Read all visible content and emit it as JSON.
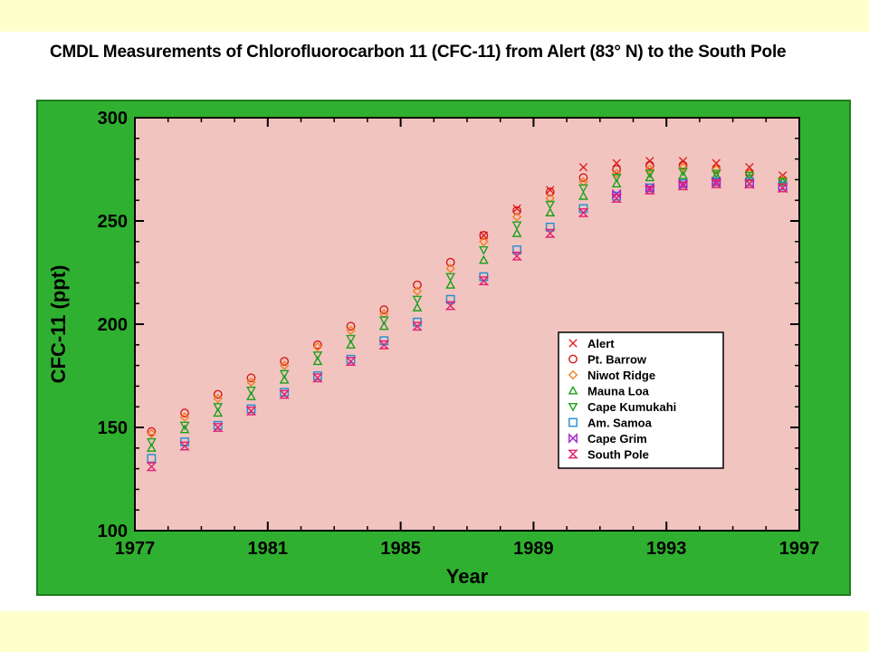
{
  "page": {
    "background": "#ffffcc",
    "band_color": "#ffffff"
  },
  "slide_title": "CMDL Measurements of Chlorofluorocarbon 11 (CFC-11) from Alert (83° N) to the South Pole",
  "colors": {
    "frame_green": "#30b030",
    "plot_background": "#f2c4c0",
    "axis": "#000000"
  },
  "chart_data": {
    "type": "scatter",
    "title": "",
    "xlabel": "Year",
    "ylabel": "CFC-11 (ppt)",
    "xlim": [
      1977,
      1997
    ],
    "ylim": [
      100,
      300
    ],
    "x_ticks": [
      1977,
      1981,
      1985,
      1989,
      1993,
      1997
    ],
    "x_tick_labels": [
      "1977",
      "1981",
      "1985",
      "1989",
      "1993",
      "1997"
    ],
    "y_ticks": [
      100,
      150,
      200,
      250,
      300
    ],
    "y_tick_labels": [
      "100",
      "150",
      "200",
      "250",
      "300"
    ],
    "grid": false,
    "legend": {
      "position": "right-center"
    },
    "x": [
      1977.5,
      1978.5,
      1979.5,
      1980.5,
      1981.5,
      1982.5,
      1983.5,
      1984.5,
      1985.5,
      1986.5,
      1987.5,
      1988.5,
      1989.5,
      1990.5,
      1991.5,
      1992.5,
      1993.5,
      1994.5,
      1995.5,
      1996.5
    ],
    "series": [
      {
        "name": "Alert",
        "marker": "x",
        "color": "#e02020",
        "values": [
          null,
          null,
          null,
          null,
          null,
          null,
          null,
          null,
          null,
          null,
          243,
          256,
          265,
          276,
          278,
          279,
          279,
          278,
          276,
          272
        ]
      },
      {
        "name": "Pt. Barrow",
        "marker": "circle",
        "color": "#d41818",
        "values": [
          148,
          157,
          166,
          174,
          182,
          190,
          199,
          207,
          219,
          230,
          243,
          255,
          264,
          271,
          275,
          277,
          277,
          275,
          273,
          270
        ]
      },
      {
        "name": "Niwot Ridge",
        "marker": "diamond",
        "color": "#f08020",
        "values": [
          147,
          155,
          164,
          172,
          180,
          189,
          197,
          205,
          216,
          227,
          240,
          252,
          261,
          269,
          273,
          275,
          276,
          275,
          273,
          270
        ]
      },
      {
        "name": "Mauna Loa",
        "marker": "triangle-up",
        "color": "#18a018",
        "values": [
          140,
          149,
          157,
          165,
          173,
          182,
          190,
          199,
          208,
          219,
          231,
          244,
          254,
          262,
          268,
          271,
          272,
          272,
          271,
          269
        ]
      },
      {
        "name": "Cape Kumukahi",
        "marker": "triangle-down",
        "color": "#20a020",
        "values": [
          143,
          151,
          160,
          168,
          176,
          185,
          193,
          202,
          212,
          223,
          236,
          248,
          258,
          266,
          271,
          273,
          274,
          273,
          272,
          269
        ]
      },
      {
        "name": "Am. Samoa",
        "marker": "square",
        "color": "#1f8fd0",
        "values": [
          135,
          143,
          151,
          159,
          167,
          175,
          183,
          192,
          201,
          212,
          223,
          236,
          247,
          256,
          262,
          266,
          268,
          269,
          269,
          267
        ]
      },
      {
        "name": "Cape Grim",
        "marker": "bowtie",
        "color": "#a020d0",
        "values": [
          null,
          null,
          null,
          null,
          null,
          null,
          null,
          null,
          null,
          null,
          null,
          null,
          null,
          null,
          263,
          266,
          268,
          269,
          268,
          266
        ]
      },
      {
        "name": "South Pole",
        "marker": "hourglass",
        "color": "#e02070",
        "values": [
          131,
          141,
          150,
          158,
          166,
          174,
          182,
          190,
          199,
          209,
          221,
          233,
          244,
          254,
          261,
          265,
          267,
          268,
          268,
          266
        ]
      }
    ]
  }
}
